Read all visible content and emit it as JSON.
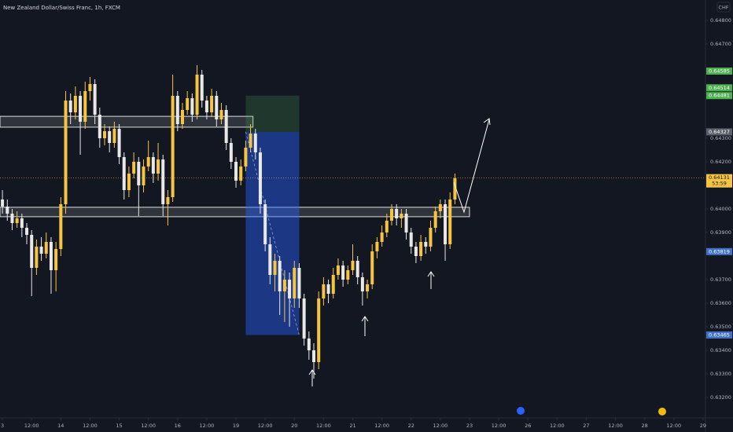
{
  "chart_data": {
    "type": "candlestick",
    "title": "New Zealand Dollar/Swiss Franc, 1h, FXCM",
    "currency": "CHF",
    "grid": false,
    "colors": {
      "up": "#f5c542",
      "down": "#e8e8e8"
    },
    "xlim": [
      -0.5,
      144.5
    ],
    "ylim": [
      0.631133,
      0.648867
    ],
    "xticks": [
      {
        "value": 0,
        "label": "3"
      },
      {
        "value": 6,
        "label": "12:00"
      },
      {
        "value": 12,
        "label": "14"
      },
      {
        "value": 18,
        "label": "12:00"
      },
      {
        "value": 24,
        "label": "15"
      },
      {
        "value": 30,
        "label": "12:00"
      },
      {
        "value": 36,
        "label": "16"
      },
      {
        "value": 42,
        "label": "12:00"
      },
      {
        "value": 48,
        "label": "19"
      },
      {
        "value": 54,
        "label": "12:00"
      },
      {
        "value": 60,
        "label": "20"
      },
      {
        "value": 66,
        "label": "12:00"
      },
      {
        "value": 72,
        "label": "21"
      },
      {
        "value": 78,
        "label": "12:00"
      },
      {
        "value": 84,
        "label": "22"
      },
      {
        "value": 90,
        "label": "12:00"
      },
      {
        "value": 96,
        "label": "23"
      },
      {
        "value": 102,
        "label": "12:00"
      },
      {
        "value": 108,
        "label": "26"
      },
      {
        "value": 114,
        "label": "12:00"
      },
      {
        "value": 120,
        "label": "27"
      },
      {
        "value": 126,
        "label": "12:00"
      },
      {
        "value": 132,
        "label": "28"
      },
      {
        "value": 138,
        "label": "12:00"
      },
      {
        "value": 144,
        "label": "29"
      }
    ],
    "yticks": [
      {
        "value": 0.648,
        "label": "0.64800"
      },
      {
        "value": 0.647,
        "label": "0.64700"
      },
      {
        "value": 0.643,
        "label": "0.64300"
      },
      {
        "value": 0.642,
        "label": "0.64200"
      },
      {
        "value": 0.64,
        "label": "0.64000"
      },
      {
        "value": 0.639,
        "label": "0.63900"
      },
      {
        "value": 0.637,
        "label": "0.63700"
      },
      {
        "value": 0.636,
        "label": "0.63600"
      },
      {
        "value": 0.635,
        "label": "0.63500"
      },
      {
        "value": 0.634,
        "label": "0.63400"
      },
      {
        "value": 0.633,
        "label": "0.63300"
      },
      {
        "value": 0.632,
        "label": "0.63200"
      }
    ],
    "open": [
      0.6404,
      0.6401,
      0.6398,
      0.6394,
      0.6396,
      0.6392,
      0.6389,
      0.6375,
      0.6384,
      0.6381,
      0.6386,
      0.6374,
      0.6383,
      0.6402,
      0.6446,
      0.6441,
      0.6448,
      0.6437,
      0.645,
      0.6453,
      0.644,
      0.643,
      0.6433,
      0.6428,
      0.6434,
      0.6422,
      0.6408,
      0.6415,
      0.642,
      0.641,
      0.6418,
      0.6422,
      0.6415,
      0.6421,
      0.6402,
      0.6405,
      0.6448,
      0.6436,
      0.6442,
      0.6447,
      0.644,
      0.6457,
      0.6446,
      0.6441,
      0.6448,
      0.6438,
      0.6442,
      0.6428,
      0.642,
      0.6412,
      0.6418,
      0.6426,
      0.6432,
      0.6424,
      0.6402,
      0.6385,
      0.6372,
      0.6378,
      0.6365,
      0.637,
      0.6362,
      0.6375,
      0.6362,
      0.6345,
      0.634,
      0.6335,
      0.6362,
      0.6368,
      0.6364,
      0.6372,
      0.6376,
      0.637,
      0.6374,
      0.6378,
      0.6371,
      0.6365,
      0.6368,
      0.6382,
      0.6386,
      0.639,
      0.6395,
      0.64,
      0.6396,
      0.6398,
      0.639,
      0.6384,
      0.638,
      0.6386,
      0.6384,
      0.6392,
      0.6399,
      0.6402,
      0.6385,
      0.6404
    ],
    "high": [
      0.6408,
      0.6404,
      0.64,
      0.6399,
      0.6398,
      0.6394,
      0.6391,
      0.6387,
      0.6388,
      0.639,
      0.6388,
      0.6386,
      0.6405,
      0.645,
      0.6449,
      0.6452,
      0.645,
      0.6454,
      0.6456,
      0.6455,
      0.6443,
      0.6436,
      0.6435,
      0.6437,
      0.6436,
      0.6424,
      0.6418,
      0.6424,
      0.6422,
      0.6421,
      0.6429,
      0.6424,
      0.6428,
      0.6423,
      0.6408,
      0.6457,
      0.645,
      0.6445,
      0.645,
      0.6449,
      0.6461,
      0.6459,
      0.6448,
      0.6451,
      0.645,
      0.6445,
      0.6444,
      0.643,
      0.6422,
      0.6421,
      0.6429,
      0.6436,
      0.6434,
      0.6426,
      0.6404,
      0.6388,
      0.6381,
      0.638,
      0.6374,
      0.6373,
      0.6378,
      0.6377,
      0.6364,
      0.6348,
      0.6343,
      0.6365,
      0.6371,
      0.637,
      0.6375,
      0.6379,
      0.6378,
      0.6376,
      0.6385,
      0.638,
      0.6373,
      0.637,
      0.6385,
      0.6388,
      0.6393,
      0.6398,
      0.6402,
      0.6402,
      0.64,
      0.64,
      0.6392,
      0.6386,
      0.6389,
      0.6388,
      0.6395,
      0.6401,
      0.6404,
      0.6404,
      0.6407,
      0.6415
    ],
    "low": [
      0.6398,
      0.6395,
      0.6391,
      0.6392,
      0.6388,
      0.6385,
      0.6363,
      0.6372,
      0.6378,
      0.6379,
      0.6364,
      0.6365,
      0.638,
      0.6398,
      0.6436,
      0.6438,
      0.6423,
      0.6434,
      0.6446,
      0.6436,
      0.6426,
      0.6427,
      0.6424,
      0.6426,
      0.6419,
      0.6404,
      0.6405,
      0.6413,
      0.6397,
      0.6407,
      0.6416,
      0.6411,
      0.6412,
      0.6397,
      0.6393,
      0.6403,
      0.6433,
      0.6434,
      0.644,
      0.6437,
      0.6438,
      0.6443,
      0.6438,
      0.6439,
      0.6435,
      0.6436,
      0.6425,
      0.6417,
      0.6409,
      0.641,
      0.6416,
      0.6424,
      0.6421,
      0.6398,
      0.6382,
      0.6368,
      0.6365,
      0.6355,
      0.6352,
      0.635,
      0.6358,
      0.6358,
      0.6342,
      0.6336,
      0.6328,
      0.6332,
      0.6359,
      0.636,
      0.6362,
      0.637,
      0.6367,
      0.6368,
      0.6372,
      0.6368,
      0.6359,
      0.6362,
      0.6366,
      0.6379,
      0.6384,
      0.6388,
      0.6393,
      0.6393,
      0.6392,
      0.6387,
      0.6381,
      0.6377,
      0.6378,
      0.6381,
      0.6382,
      0.639,
      0.6396,
      0.6378,
      0.6383,
      0.6402
    ],
    "close": [
      0.6401,
      0.6398,
      0.6394,
      0.6396,
      0.6392,
      0.6389,
      0.6375,
      0.6384,
      0.6381,
      0.6386,
      0.6374,
      0.6383,
      0.6402,
      0.6446,
      0.6441,
      0.6448,
      0.6437,
      0.645,
      0.6453,
      0.644,
      0.643,
      0.6433,
      0.6428,
      0.6434,
      0.6422,
      0.6408,
      0.6415,
      0.642,
      0.641,
      0.6418,
      0.6422,
      0.6415,
      0.6421,
      0.6402,
      0.6405,
      0.6448,
      0.6436,
      0.6442,
      0.6447,
      0.644,
      0.6457,
      0.6446,
      0.6441,
      0.6448,
      0.6438,
      0.6442,
      0.6428,
      0.642,
      0.6412,
      0.6418,
      0.6426,
      0.6432,
      0.6424,
      0.6402,
      0.6385,
      0.6372,
      0.6378,
      0.6365,
      0.637,
      0.6362,
      0.6375,
      0.6362,
      0.6345,
      0.634,
      0.6335,
      0.6362,
      0.6368,
      0.6364,
      0.6372,
      0.6376,
      0.637,
      0.6374,
      0.6378,
      0.6371,
      0.6365,
      0.6368,
      0.6382,
      0.6386,
      0.639,
      0.6395,
      0.64,
      0.6396,
      0.6398,
      0.639,
      0.6384,
      0.638,
      0.6386,
      0.6384,
      0.6392,
      0.6399,
      0.6402,
      0.6385,
      0.6404,
      0.6413
    ],
    "zones": [
      {
        "top": 0.64393,
        "bottom": 0.64347,
        "start": -0.5,
        "end": 51.5
      },
      {
        "top": 0.64007,
        "bottom": 0.63967,
        "start": -0.5,
        "end": 96
      }
    ],
    "position": {
      "stop": 0.64481,
      "entry": 0.64327,
      "target": 0.63465,
      "start": 50,
      "end": 61
    },
    "last_price": {
      "value": 0.64131,
      "countdown": "53:59"
    },
    "price_labels": [
      {
        "value": 0.64585,
        "color": "#4caf50"
      },
      {
        "value": 0.64514,
        "color": "#4caf50"
      },
      {
        "value": 0.64481,
        "color": "#4caf50"
      },
      {
        "value": 0.64327,
        "color": "#5d606b"
      },
      {
        "value": 0.63819,
        "color": "#3f72c6"
      },
      {
        "value": 0.63465,
        "color": "#3f72c6"
      }
    ]
  }
}
